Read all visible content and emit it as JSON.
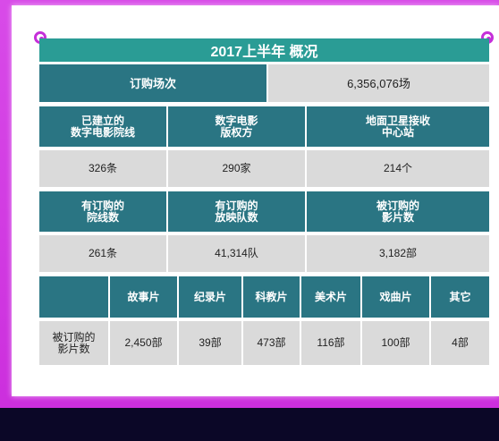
{
  "title": "2017上半年  概况",
  "summary": {
    "label": "订购场次",
    "value": "6,356,076场"
  },
  "infra": {
    "headers": [
      "已建立的\n数字电影院线",
      "数字电影\n版权方",
      "地面卫星接收\n中心站"
    ],
    "values": [
      "326条",
      "290家",
      "214个"
    ]
  },
  "orders": {
    "headers": [
      "有订购的\n院线数",
      "有订购的\n放映队数",
      "被订购的\n影片数"
    ],
    "values": [
      "261条",
      "41,314队",
      "3,182部"
    ]
  },
  "genres": {
    "row_label": "被订购的\n影片数",
    "headers": [
      "故事片",
      "纪录片",
      "科教片",
      "美术片",
      "戏曲片",
      "其它"
    ],
    "values": [
      "2,450部",
      "39部",
      "473部",
      "116部",
      "100部",
      "4部"
    ]
  },
  "colors": {
    "title_bg": "#2a9c95",
    "header_bg": "#2a7583",
    "value_bg": "#dadada",
    "frame": "#cc2fdd",
    "footer": "#0b0727"
  }
}
